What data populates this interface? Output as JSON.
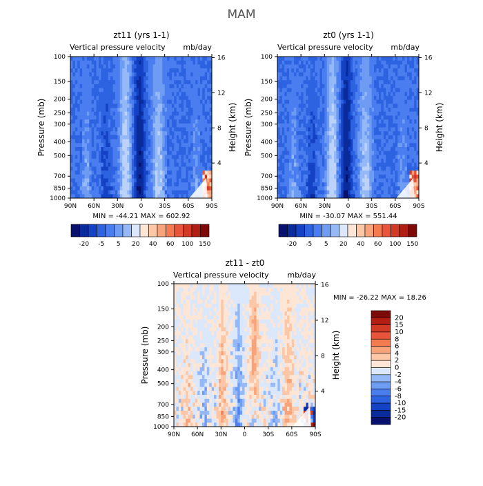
{
  "title": "MAM",
  "chart_data": [
    {
      "type": "heatmap",
      "id": "zt11",
      "title": "zt11 (yrs 1-1)",
      "subtitle_left": "Vertical pressure velocity",
      "subtitle_right": "mb/day",
      "ylabel": "Pressure (mb)",
      "ylabel_right": "Height (km)",
      "x_ticks": [
        "90N",
        "60N",
        "30N",
        "0",
        "30S",
        "60S",
        "90S"
      ],
      "y_ticks": [
        "100",
        "150",
        "200",
        "250",
        "300",
        "400",
        "500",
        "700",
        "850",
        "1000"
      ],
      "height_ticks": [
        "16",
        "12",
        "8",
        "4"
      ],
      "min": -44.21,
      "max": 602.92,
      "stats_text": "MIN = -44.21   MAX = 602.92",
      "colorbar": [
        "-20",
        "-5",
        "5",
        "20",
        "40",
        "60",
        "100",
        "150"
      ],
      "pattern": "mostly-negative"
    },
    {
      "type": "heatmap",
      "id": "zt0",
      "title": "zt0 (yrs 1-1)",
      "subtitle_left": "Vertical pressure velocity",
      "subtitle_right": "mb/day",
      "ylabel": "Pressure (mb)",
      "ylabel_right": "Height (km)",
      "x_ticks": [
        "90N",
        "60N",
        "30N",
        "0",
        "30S",
        "60S",
        "90S"
      ],
      "y_ticks": [
        "100",
        "150",
        "200",
        "250",
        "300",
        "400",
        "500",
        "700",
        "850",
        "1000"
      ],
      "height_ticks": [
        "16",
        "12",
        "8",
        "4"
      ],
      "min": -30.07,
      "max": 551.44,
      "stats_text": "MIN = -30.07   MAX = 551.44",
      "colorbar": [
        "-20",
        "-5",
        "5",
        "20",
        "40",
        "60",
        "100",
        "150"
      ],
      "pattern": "mostly-negative"
    },
    {
      "type": "heatmap",
      "id": "diff",
      "title": "zt11 - zt0",
      "subtitle_left": "Vertical pressure velocity",
      "subtitle_right": "mb/day",
      "ylabel": "Pressure (mb)",
      "ylabel_right": "Height (km)",
      "x_ticks": [
        "90N",
        "60N",
        "30N",
        "0",
        "30S",
        "60S",
        "90S"
      ],
      "y_ticks": [
        "100",
        "150",
        "200",
        "250",
        "300",
        "400",
        "500",
        "700",
        "850",
        "1000"
      ],
      "height_ticks": [
        "16",
        "12",
        "8",
        "4"
      ],
      "min": -26.22,
      "max": 18.26,
      "stats_text": "MIN = -26.22   MAX =  18.26",
      "colorbar": [
        "20",
        "15",
        "10",
        "8",
        "6",
        "4",
        "2",
        "0",
        "-2",
        "-4",
        "-6",
        "-8",
        "-10",
        "-15",
        "-20"
      ],
      "pattern": "difference"
    }
  ],
  "colors": {
    "blues": [
      "#08126e",
      "#0a2b9c",
      "#1442c4",
      "#2d62e0",
      "#4a7ef0",
      "#6f9cf3",
      "#95b8f6",
      "#bcd2f8",
      "#dbe7fb"
    ],
    "reds": [
      "#fde6d6",
      "#fbc7a6",
      "#f9a37a",
      "#f47b50",
      "#e8553a",
      "#d13a24",
      "#b11f14",
      "#7e0a07"
    ]
  }
}
